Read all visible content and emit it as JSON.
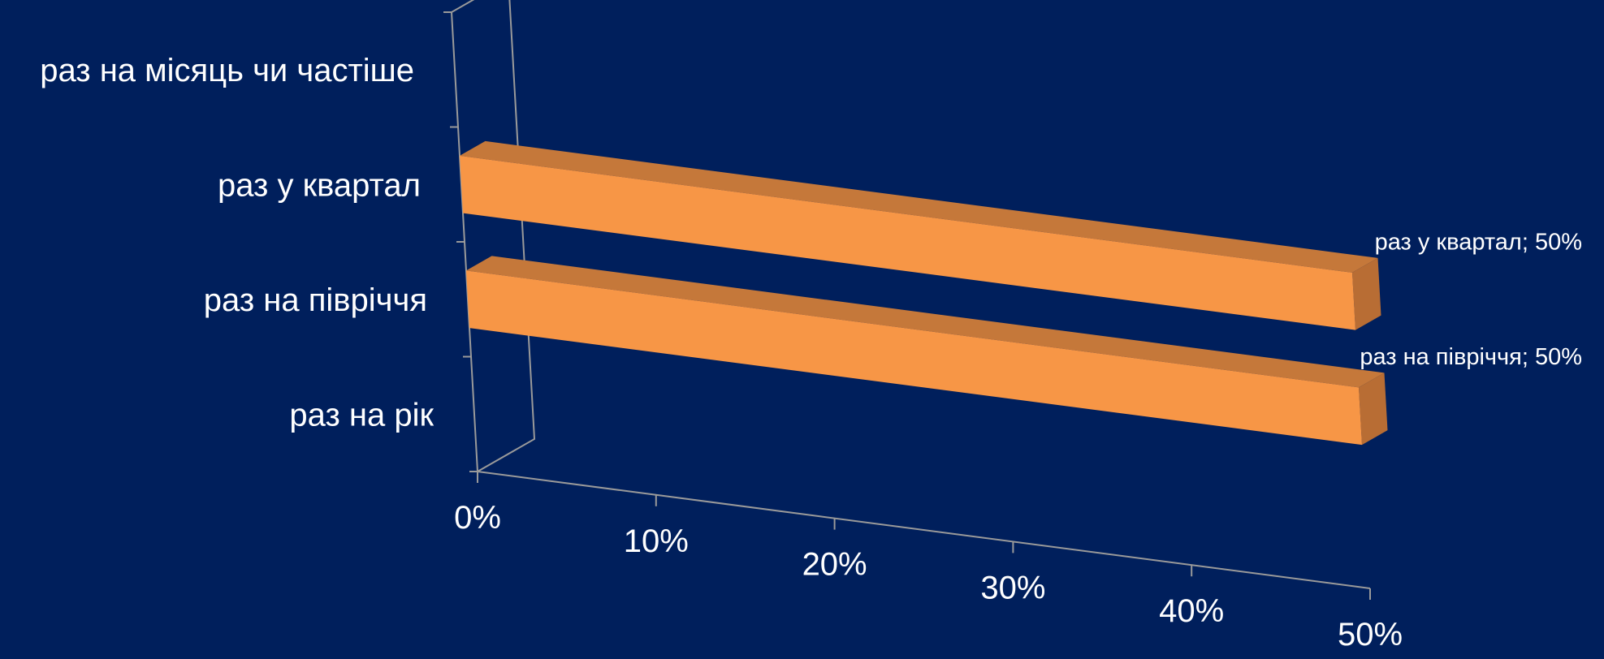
{
  "chart_data": {
    "type": "bar",
    "orientation": "horizontal",
    "style": "3d",
    "categories": [
      "раз на місяць чи частіше",
      "раз у квартал",
      "раз на півріччя",
      "раз на рік"
    ],
    "values": [
      0,
      0.5,
      0.5,
      0
    ],
    "data_labels": [
      "",
      "раз у квартал; 50%",
      "раз на півріччя; 50%",
      ""
    ],
    "x_ticks": [
      "0%",
      "10%",
      "20%",
      "30%",
      "40%",
      "50%"
    ],
    "xlim": [
      0,
      0.5
    ],
    "grid": false,
    "legend": "none",
    "colors": {
      "background": "#001f5c",
      "bar_front": "#f79646",
      "bar_top": "#c5783a",
      "bar_side": "#b86d34",
      "axis": "#9a9a9a",
      "text": "#ffffff"
    }
  }
}
